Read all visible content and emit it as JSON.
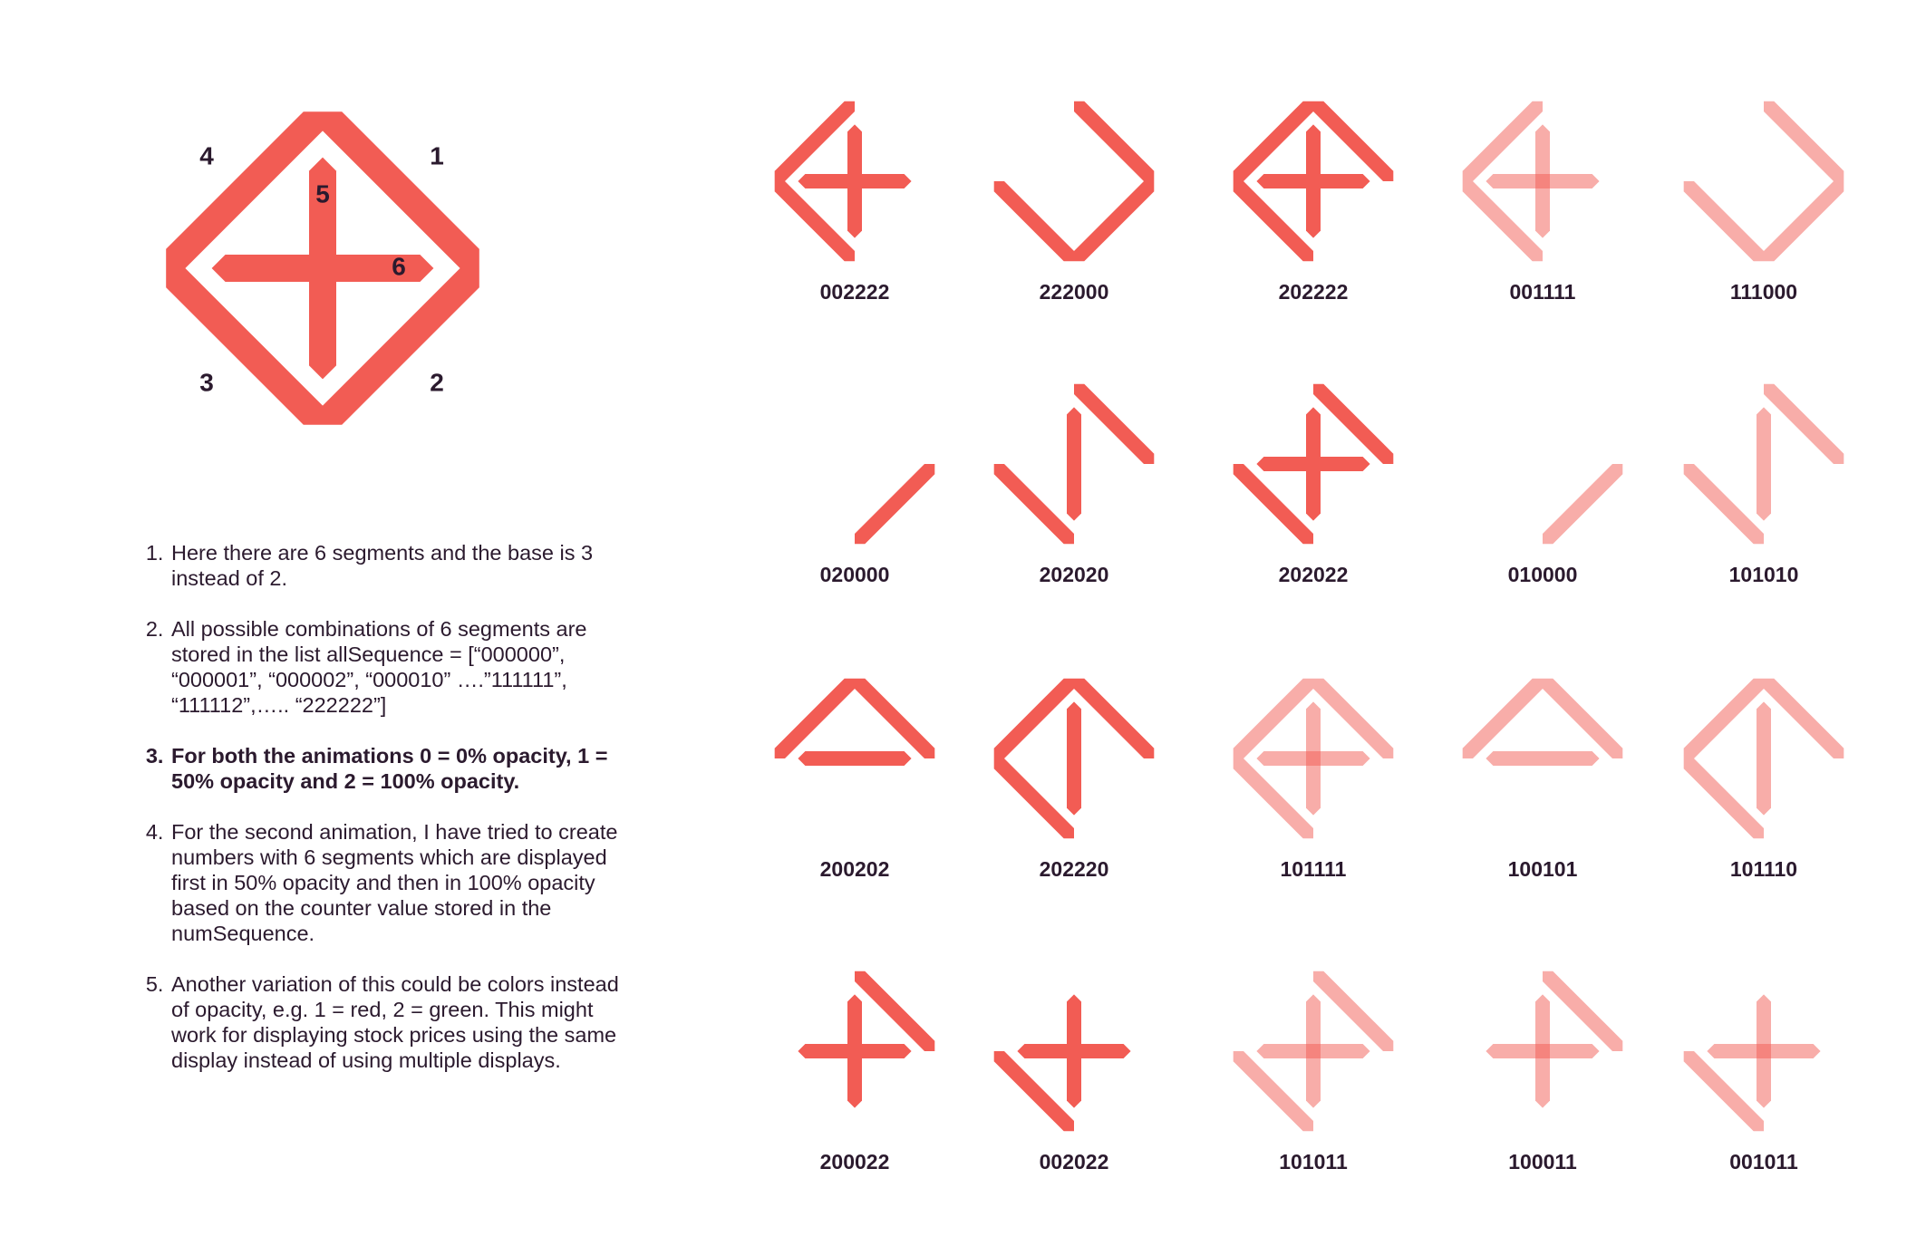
{
  "colors": {
    "segment": "#f25c54",
    "text": "#2b1a2e"
  },
  "opacity_levels": {
    "0": 0,
    "1": 0.5,
    "2": 1
  },
  "key_diagram": {
    "sequence": "222222",
    "labels": [
      "1",
      "2",
      "3",
      "4",
      "5",
      "6"
    ]
  },
  "notes": [
    {
      "text": "Here there are 6 segments and the base is 3 instead of 2.",
      "bold": false
    },
    {
      "text": "All possible combinations of 6 segments are stored in the list allSequence = [“000000”, “000001”, “000002”, “000010” ….”111111”, “111112”,….. “222222”]",
      "bold": false
    },
    {
      "text": "For both the animations 0 = 0% opacity, 1 = 50% opacity and 2 = 100% opacity.",
      "bold": true
    },
    {
      "text": "For the second animation, I have tried to create numbers with 6 segments which are displayed first in 50% opacity and then in 100% opacity based on the counter value stored in the numSequence.",
      "bold": false
    },
    {
      "text": "Another variation of this could be colors instead of opacity, e.g. 1 = red, 2 = green. This might work for displaying stock prices using the same display instead of using multiple displays.",
      "bold": false
    }
  ],
  "glyphs": [
    [
      "002222",
      "222000",
      "202222",
      "001111",
      "111000"
    ],
    [
      "020000",
      "202020",
      "202022",
      "010000",
      "101010"
    ],
    [
      "200202",
      "202220",
      "101111",
      "100101",
      "101110"
    ],
    [
      "200022",
      "002022",
      "101011",
      "100011",
      "001011"
    ]
  ]
}
